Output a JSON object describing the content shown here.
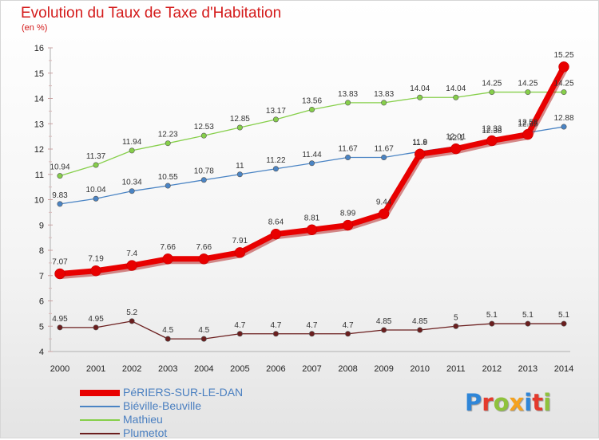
{
  "title": "Evolution du Taux de Taxe d'Habitation",
  "unit": "(en %)",
  "brand": {
    "letters": [
      "P",
      "r",
      "o",
      "x",
      "i",
      "t",
      "i"
    ],
    "colors": [
      "#2f86d8",
      "#e43a2c",
      "#8fc23c",
      "#f4a21f",
      "#2f86d8",
      "#e43a2c",
      "#8fc23c"
    ]
  },
  "chart_data": {
    "type": "line",
    "title": "Evolution du Taux de Taxe d'Habitation",
    "xlabel": "",
    "ylabel": "(en %)",
    "x": [
      "2000",
      "2001",
      "2002",
      "2003",
      "2004",
      "2005",
      "2006",
      "2007",
      "2008",
      "2009",
      "2010",
      "2011",
      "2012",
      "2013",
      "2014"
    ],
    "ylim": [
      4,
      16
    ],
    "yticks": [
      "4",
      "5",
      "6",
      "7",
      "8",
      "9",
      "10",
      "11",
      "12",
      "13",
      "14",
      "15",
      "16"
    ],
    "grid": false,
    "legend_position": "bottom-left",
    "series": [
      {
        "name": "PéRIERS-SUR-LE-DAN",
        "color": "#e80000",
        "emphasis": "thick",
        "values": [
          7.07,
          7.19,
          7.4,
          7.66,
          7.66,
          7.91,
          8.64,
          8.81,
          8.99,
          9.44,
          11.8,
          12.01,
          12.33,
          12.58,
          15.25
        ],
        "labels": [
          "7.07",
          "7.19",
          "7.4",
          "7.66",
          "7.66",
          "7.91",
          "8.64",
          "8.81",
          "8.99",
          "9.44",
          "11.8",
          "12.01",
          "12.33",
          "12.58",
          "15.25"
        ]
      },
      {
        "name": "Biéville-Beuville",
        "color": "#4a84c4",
        "emphasis": "normal",
        "values": [
          9.83,
          10.04,
          10.34,
          10.55,
          10.78,
          11,
          11.22,
          11.44,
          11.67,
          11.67,
          11.9,
          12.1,
          12.38,
          12.65,
          12.88
        ],
        "labels": [
          "9.83",
          "10.04",
          "10.34",
          "10.55",
          "10.78",
          "11",
          "11.22",
          "11.44",
          "11.67",
          "11.67",
          "11.9",
          "12.1",
          "12.38",
          "12.65",
          "12.88"
        ]
      },
      {
        "name": "Mathieu",
        "color": "#86cf4a",
        "emphasis": "normal",
        "values": [
          10.94,
          11.37,
          11.94,
          12.23,
          12.53,
          12.85,
          13.17,
          13.56,
          13.83,
          13.83,
          14.04,
          14.04,
          14.25,
          14.25,
          14.25
        ],
        "labels": [
          "10.94",
          "11.37",
          "11.94",
          "12.23",
          "12.53",
          "12.85",
          "13.17",
          "13.56",
          "13.83",
          "13.83",
          "14.04",
          "14.04",
          "14.25",
          "14.25",
          "14.25"
        ]
      },
      {
        "name": "Plumetot",
        "color": "#6b1e1e",
        "emphasis": "normal",
        "values": [
          4.95,
          4.95,
          5.2,
          4.5,
          4.5,
          4.7,
          4.7,
          4.7,
          4.7,
          4.85,
          4.85,
          5,
          5.1,
          5.1,
          5.1
        ],
        "labels": [
          "4.95",
          "4.95",
          "5.2",
          "4.5",
          "4.5",
          "4.7",
          "4.7",
          "4.7",
          "4.7",
          "4.85",
          "4.85",
          "5",
          "5.1",
          "5.1",
          "5.1"
        ]
      }
    ]
  }
}
